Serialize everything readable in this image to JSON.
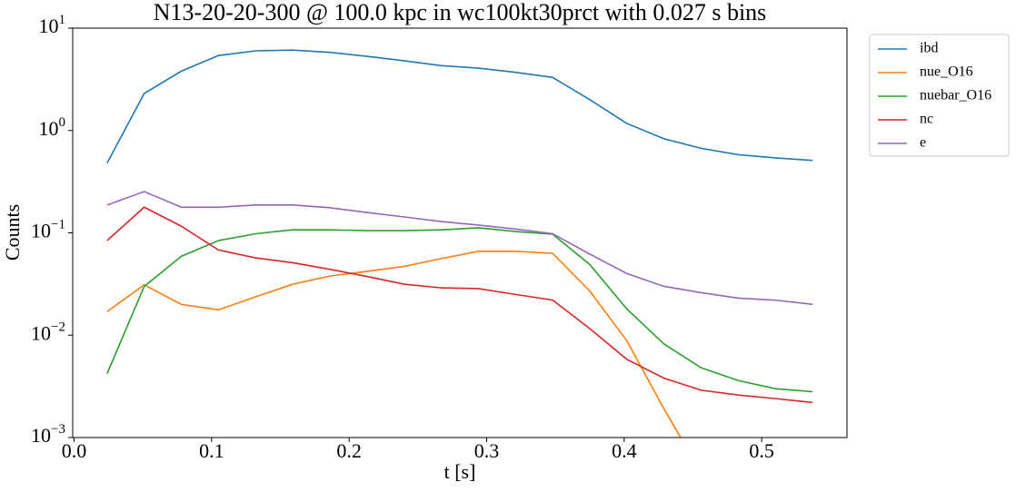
{
  "chart_data": {
    "type": "line",
    "title": "N13-20-20-300 @ 100.0 kpc in wc100kt30prct with 0.027 s bins",
    "xlabel": "t [s]",
    "ylabel": "Counts",
    "x": [
      0.024,
      0.051,
      0.078,
      0.105,
      0.132,
      0.159,
      0.186,
      0.213,
      0.24,
      0.267,
      0.294,
      0.321,
      0.348,
      0.375,
      0.402,
      0.429,
      0.456,
      0.483,
      0.51,
      0.537
    ],
    "series": [
      {
        "name": "ibd",
        "color": "#1f77b4",
        "values": [
          0.48,
          2.3,
          3.8,
          5.4,
          6.0,
          6.1,
          5.8,
          5.3,
          4.8,
          4.3,
          4.07,
          3.7,
          3.3,
          2.0,
          1.17,
          0.83,
          0.67,
          0.58,
          0.54,
          0.51
        ]
      },
      {
        "name": "nue_O16",
        "color": "#ff7f0e",
        "values": [
          0.017,
          0.031,
          0.02,
          0.0177,
          0.0237,
          0.0315,
          0.0378,
          0.042,
          0.047,
          0.056,
          0.066,
          0.066,
          0.063,
          0.027,
          0.0088,
          0.0019,
          0.00045,
          null,
          null,
          null
        ]
      },
      {
        "name": "nuebar_O16",
        "color": "#2ca02c",
        "values": [
          0.0042,
          0.03,
          0.059,
          0.084,
          0.098,
          0.107,
          0.107,
          0.105,
          0.105,
          0.107,
          0.112,
          0.103,
          0.097,
          0.049,
          0.018,
          0.0082,
          0.0048,
          0.0036,
          0.003,
          0.0028
        ]
      },
      {
        "name": "nc",
        "color": "#d62728",
        "values": [
          0.084,
          0.178,
          0.116,
          0.068,
          0.057,
          0.051,
          0.044,
          0.0375,
          0.0315,
          0.029,
          0.0285,
          0.025,
          0.022,
          0.0116,
          0.0058,
          0.0038,
          0.0029,
          0.0026,
          0.0024,
          0.0022
        ]
      },
      {
        "name": "e",
        "color": "#9467bd",
        "values": [
          0.187,
          0.253,
          0.178,
          0.178,
          0.187,
          0.187,
          0.176,
          0.158,
          0.143,
          0.129,
          0.119,
          0.109,
          0.098,
          0.062,
          0.04,
          0.03,
          0.026,
          0.023,
          0.022,
          0.02
        ]
      }
    ],
    "xlim": [
      -0.001,
      0.562
    ],
    "xticks": [
      {
        "value": 0,
        "label": "0.0"
      },
      0.1,
      0.2,
      0.3,
      0.4,
      0.5
    ],
    "ylim": [
      0.001,
      10
    ],
    "log_y": true,
    "yticks": [
      {
        "value": 0.001,
        "label": "10",
        "exponent": "−3"
      },
      {
        "value": 0.01,
        "label": "10",
        "exponent": "−2"
      },
      {
        "value": 0.1,
        "label": "10",
        "exponent": "−1"
      },
      {
        "value": 1,
        "label": "10",
        "exponent": "0"
      },
      {
        "value": 10,
        "label": "10",
        "exponent": "1"
      }
    ],
    "legend": "outside-upper-right"
  }
}
